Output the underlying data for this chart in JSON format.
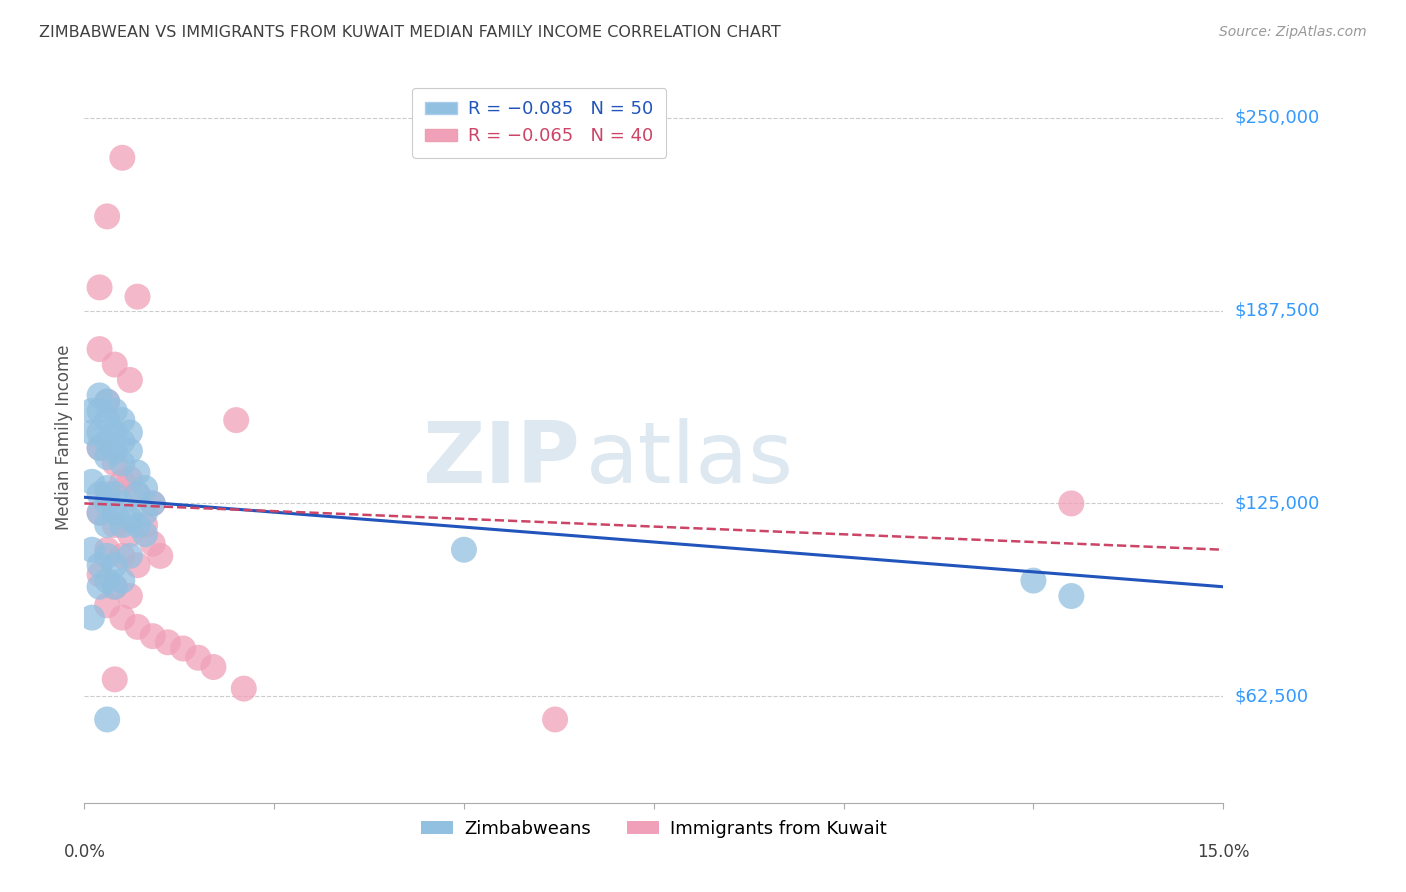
{
  "title": "ZIMBABWEAN VS IMMIGRANTS FROM KUWAIT MEDIAN FAMILY INCOME CORRELATION CHART",
  "source": "Source: ZipAtlas.com",
  "ylabel": "Median Family Income",
  "yticks": [
    62500,
    125000,
    187500,
    250000
  ],
  "ytick_labels": [
    "$62,500",
    "$125,000",
    "$187,500",
    "$250,000"
  ],
  "xlim": [
    0.0,
    0.15
  ],
  "ylim": [
    28000,
    265000
  ],
  "blue_color": "#92c0e0",
  "pink_color": "#f0a0b8",
  "trend_blue": "#2255bb",
  "trend_pink": "#cc4466",
  "watermark_top": "ZIP",
  "watermark_bot": "atlas",
  "background_color": "#ffffff",
  "grid_color": "#cccccc",
  "title_color": "#404040",
  "axis_label_color": "#3399ff",
  "blue_scatter": [
    [
      0.001,
      155000
    ],
    [
      0.001,
      148000
    ],
    [
      0.002,
      160000
    ],
    [
      0.002,
      155000
    ],
    [
      0.002,
      148000
    ],
    [
      0.002,
      143000
    ],
    [
      0.003,
      158000
    ],
    [
      0.003,
      152000
    ],
    [
      0.003,
      145000
    ],
    [
      0.003,
      140000
    ],
    [
      0.004,
      155000
    ],
    [
      0.004,
      148000
    ],
    [
      0.004,
      142000
    ],
    [
      0.005,
      152000
    ],
    [
      0.005,
      145000
    ],
    [
      0.005,
      138000
    ],
    [
      0.006,
      148000
    ],
    [
      0.006,
      142000
    ],
    [
      0.001,
      132000
    ],
    [
      0.002,
      128000
    ],
    [
      0.002,
      122000
    ],
    [
      0.003,
      130000
    ],
    [
      0.003,
      125000
    ],
    [
      0.003,
      118000
    ],
    [
      0.004,
      128000
    ],
    [
      0.004,
      122000
    ],
    [
      0.005,
      125000
    ],
    [
      0.005,
      118000
    ],
    [
      0.006,
      120000
    ],
    [
      0.007,
      135000
    ],
    [
      0.007,
      128000
    ],
    [
      0.007,
      118000
    ],
    [
      0.008,
      130000
    ],
    [
      0.008,
      122000
    ],
    [
      0.009,
      125000
    ],
    [
      0.001,
      110000
    ],
    [
      0.002,
      105000
    ],
    [
      0.002,
      98000
    ],
    [
      0.003,
      108000
    ],
    [
      0.003,
      100000
    ],
    [
      0.004,
      105000
    ],
    [
      0.004,
      98000
    ],
    [
      0.005,
      100000
    ],
    [
      0.001,
      88000
    ],
    [
      0.003,
      55000
    ],
    [
      0.006,
      108000
    ],
    [
      0.008,
      115000
    ],
    [
      0.05,
      110000
    ],
    [
      0.13,
      95000
    ],
    [
      0.125,
      100000
    ]
  ],
  "pink_scatter": [
    [
      0.005,
      237000
    ],
    [
      0.003,
      218000
    ],
    [
      0.002,
      195000
    ],
    [
      0.007,
      192000
    ],
    [
      0.002,
      175000
    ],
    [
      0.004,
      170000
    ],
    [
      0.006,
      165000
    ],
    [
      0.003,
      158000
    ],
    [
      0.02,
      152000
    ],
    [
      0.002,
      143000
    ],
    [
      0.004,
      138000
    ],
    [
      0.006,
      133000
    ],
    [
      0.003,
      128000
    ],
    [
      0.005,
      132000
    ],
    [
      0.007,
      128000
    ],
    [
      0.009,
      125000
    ],
    [
      0.002,
      122000
    ],
    [
      0.004,
      118000
    ],
    [
      0.006,
      115000
    ],
    [
      0.003,
      110000
    ],
    [
      0.005,
      108000
    ],
    [
      0.007,
      105000
    ],
    [
      0.008,
      118000
    ],
    [
      0.009,
      112000
    ],
    [
      0.01,
      108000
    ],
    [
      0.002,
      102000
    ],
    [
      0.004,
      98000
    ],
    [
      0.006,
      95000
    ],
    [
      0.003,
      92000
    ],
    [
      0.005,
      88000
    ],
    [
      0.007,
      85000
    ],
    [
      0.009,
      82000
    ],
    [
      0.011,
      80000
    ],
    [
      0.013,
      78000
    ],
    [
      0.015,
      75000
    ],
    [
      0.017,
      72000
    ],
    [
      0.004,
      68000
    ],
    [
      0.13,
      125000
    ],
    [
      0.062,
      55000
    ],
    [
      0.021,
      65000
    ]
  ],
  "blue_trend_x": [
    0.0,
    0.15
  ],
  "blue_trend_y": [
    127000,
    98000
  ],
  "pink_trend_x": [
    0.0,
    0.15
  ],
  "pink_trend_y": [
    125000,
    110000
  ]
}
